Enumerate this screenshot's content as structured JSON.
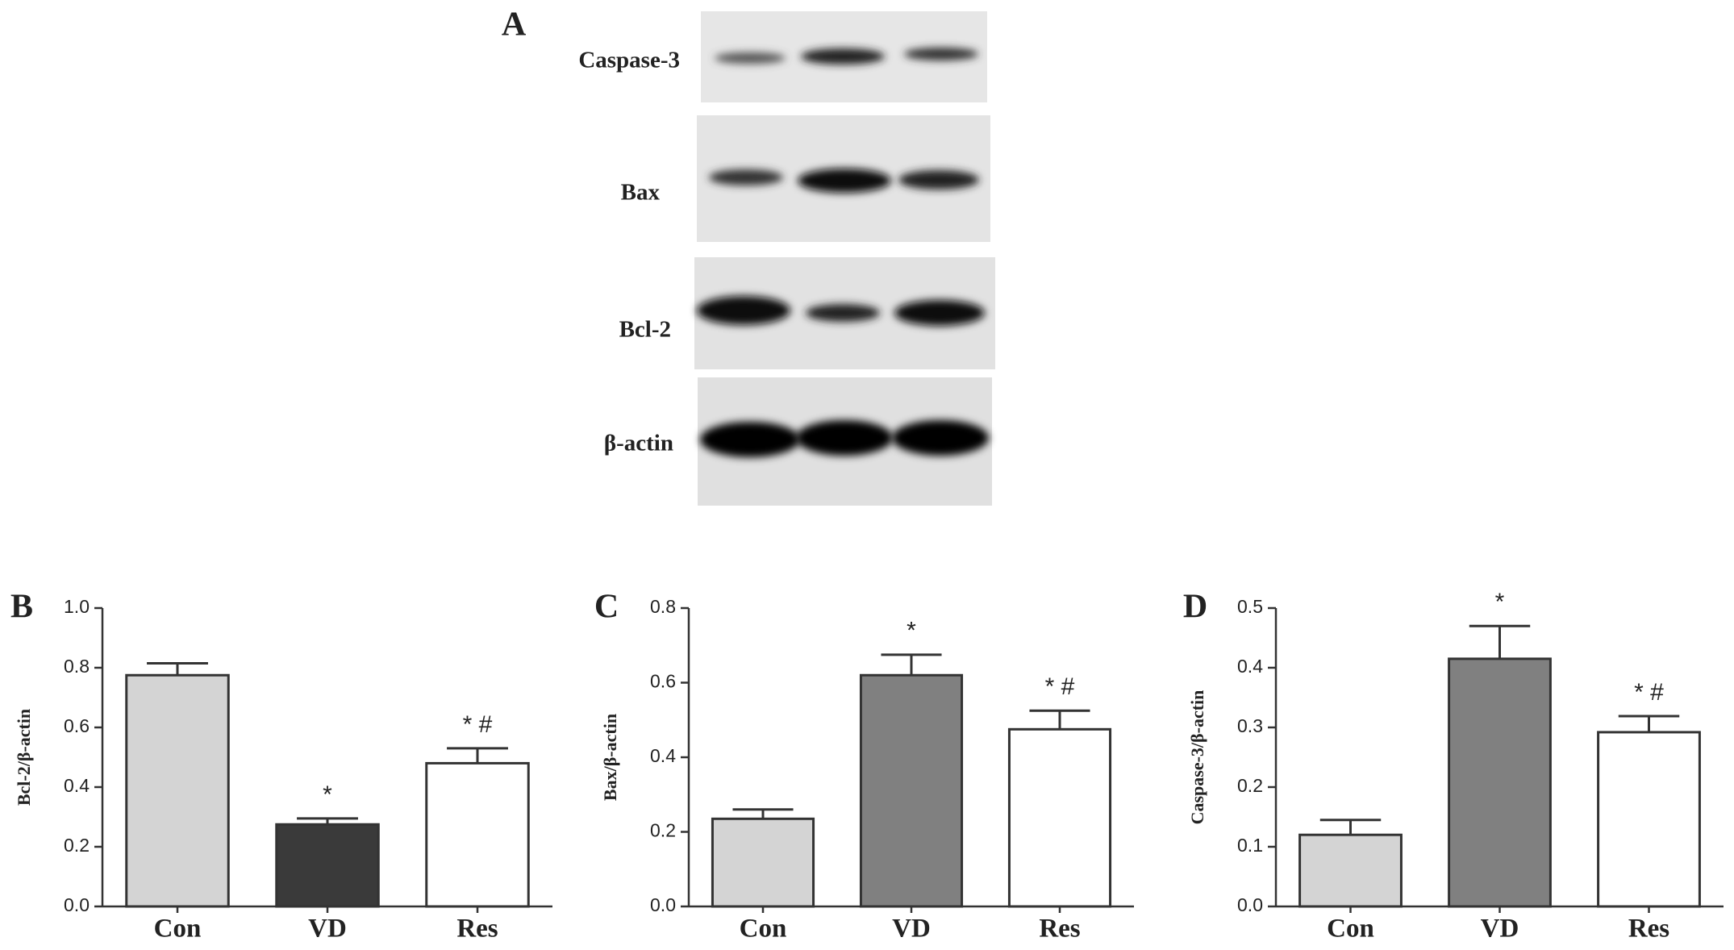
{
  "panel_a": {
    "label": "A",
    "bands": [
      "Caspase-3",
      "Bax",
      "Bcl-2",
      "β-actin"
    ]
  },
  "chart_data": [
    {
      "type": "bar",
      "panel": "B",
      "ylabel": "Bcl-2/β-actin",
      "categories": [
        "Con",
        "VD",
        "Res"
      ],
      "values": [
        0.775,
        0.275,
        0.48
      ],
      "errors": [
        0.04,
        0.02,
        0.05
      ],
      "colors": [
        "#d4d4d4",
        "#3a3a3a",
        "#ffffff"
      ],
      "annotations": [
        null,
        "*",
        "* #"
      ],
      "ylim": [
        0,
        1
      ],
      "yticks": [
        {
          "value": 0,
          "label": "0.0"
        },
        0.2,
        0.4,
        0.6,
        0.8,
        {
          "value": 1,
          "label": "1.0"
        }
      ]
    },
    {
      "type": "bar",
      "panel": "C",
      "ylabel": "Bax/β-actin",
      "categories": [
        "Con",
        "VD",
        "Res"
      ],
      "values": [
        0.235,
        0.62,
        0.475
      ],
      "errors": [
        0.025,
        0.055,
        0.05
      ],
      "colors": [
        "#d4d4d4",
        "#808080",
        "#ffffff"
      ],
      "annotations": [
        null,
        "*",
        "* #"
      ],
      "ylim": [
        0,
        0.8
      ],
      "yticks": [
        {
          "value": 0,
          "label": "0.0"
        },
        0.2,
        0.4,
        0.6,
        0.8
      ]
    },
    {
      "type": "bar",
      "panel": "D",
      "ylabel": "Caspase-3/β-actin",
      "categories": [
        "Con",
        "VD",
        "Res"
      ],
      "values": [
        0.12,
        0.415,
        0.292
      ],
      "errors": [
        0.025,
        0.055,
        0.027
      ],
      "colors": [
        "#d4d4d4",
        "#808080",
        "#ffffff"
      ],
      "annotations": [
        null,
        "*",
        "* #"
      ],
      "ylim": [
        0,
        0.5
      ],
      "yticks": [
        {
          "value": 0,
          "label": "0.0"
        },
        0.1,
        0.2,
        0.3,
        0.4,
        0.5
      ]
    }
  ]
}
